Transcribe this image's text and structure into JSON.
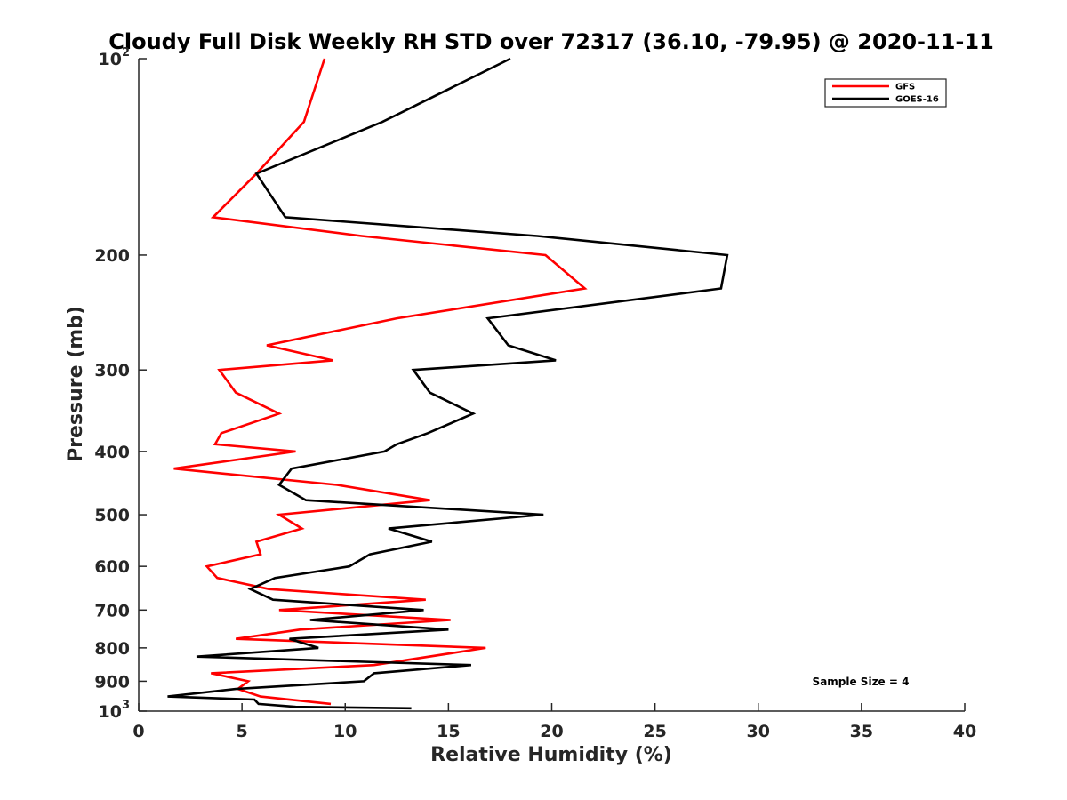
{
  "chart_data": {
    "type": "line",
    "title": "Cloudy Full Disk Weekly RH STD over 72317 (36.10, -79.95) @ 2020-11-11",
    "xlabel": "Relative Humidity (%)",
    "ylabel": "Pressure (mb)",
    "xlim": [
      0,
      40
    ],
    "ylim": [
      100,
      1000
    ],
    "y_scale": "log",
    "y_reversed": true,
    "x_ticks": [
      {
        "value": 0,
        "label": "0"
      },
      {
        "value": 5,
        "label": "5"
      },
      {
        "value": 10,
        "label": "10"
      },
      {
        "value": 15,
        "label": "15"
      },
      {
        "value": 20,
        "label": "20"
      },
      {
        "value": 25,
        "label": "25"
      },
      {
        "value": 30,
        "label": "30"
      },
      {
        "value": 35,
        "label": "35"
      },
      {
        "value": 40,
        "label": "40"
      }
    ],
    "y_ticks": [
      {
        "value": 100,
        "base": "10",
        "exp": "2"
      },
      {
        "value": 200,
        "label": "200"
      },
      {
        "value": 300,
        "label": "300"
      },
      {
        "value": 400,
        "label": "400"
      },
      {
        "value": 500,
        "label": "500"
      },
      {
        "value": 600,
        "label": "600"
      },
      {
        "value": 700,
        "label": "700"
      },
      {
        "value": 800,
        "label": "800"
      },
      {
        "value": 900,
        "label": "900"
      },
      {
        "value": 1000,
        "base": "10",
        "exp": "3"
      }
    ],
    "grid": false,
    "legend_position": "top-right",
    "series": [
      {
        "name": "GFS",
        "color": "#ff0000",
        "points": [
          {
            "x": 9.0,
            "y": 100
          },
          {
            "x": 8.0,
            "y": 125
          },
          {
            "x": 5.7,
            "y": 150
          },
          {
            "x": 3.6,
            "y": 175
          },
          {
            "x": 10.8,
            "y": 187
          },
          {
            "x": 19.7,
            "y": 200
          },
          {
            "x": 21.6,
            "y": 225
          },
          {
            "x": 12.5,
            "y": 250
          },
          {
            "x": 6.2,
            "y": 275
          },
          {
            "x": 9.4,
            "y": 290
          },
          {
            "x": 3.9,
            "y": 300
          },
          {
            "x": 4.7,
            "y": 325
          },
          {
            "x": 6.8,
            "y": 350
          },
          {
            "x": 4.0,
            "y": 375
          },
          {
            "x": 3.7,
            "y": 390
          },
          {
            "x": 7.6,
            "y": 400
          },
          {
            "x": 1.7,
            "y": 425
          },
          {
            "x": 9.6,
            "y": 450
          },
          {
            "x": 14.1,
            "y": 475
          },
          {
            "x": 6.8,
            "y": 500
          },
          {
            "x": 7.9,
            "y": 525
          },
          {
            "x": 5.7,
            "y": 550
          },
          {
            "x": 5.9,
            "y": 575
          },
          {
            "x": 3.3,
            "y": 600
          },
          {
            "x": 3.8,
            "y": 625
          },
          {
            "x": 6.3,
            "y": 650
          },
          {
            "x": 13.9,
            "y": 675
          },
          {
            "x": 6.8,
            "y": 700
          },
          {
            "x": 15.1,
            "y": 725
          },
          {
            "x": 7.8,
            "y": 750
          },
          {
            "x": 4.7,
            "y": 775
          },
          {
            "x": 16.8,
            "y": 800
          },
          {
            "x": 11.4,
            "y": 850
          },
          {
            "x": 3.5,
            "y": 875
          },
          {
            "x": 5.3,
            "y": 900
          },
          {
            "x": 4.8,
            "y": 925
          },
          {
            "x": 5.9,
            "y": 950
          },
          {
            "x": 9.3,
            "y": 975
          }
        ]
      },
      {
        "name": "GOES-16",
        "color": "#000000",
        "points": [
          {
            "x": 18.0,
            "y": 100
          },
          {
            "x": 11.8,
            "y": 125
          },
          {
            "x": 5.7,
            "y": 150
          },
          {
            "x": 7.1,
            "y": 175
          },
          {
            "x": 19.3,
            "y": 187
          },
          {
            "x": 28.5,
            "y": 200
          },
          {
            "x": 28.2,
            "y": 225
          },
          {
            "x": 16.9,
            "y": 250
          },
          {
            "x": 17.9,
            "y": 275
          },
          {
            "x": 20.2,
            "y": 290
          },
          {
            "x": 13.3,
            "y": 300
          },
          {
            "x": 14.1,
            "y": 325
          },
          {
            "x": 16.2,
            "y": 350
          },
          {
            "x": 14.0,
            "y": 375
          },
          {
            "x": 12.5,
            "y": 390
          },
          {
            "x": 11.9,
            "y": 400
          },
          {
            "x": 7.4,
            "y": 425
          },
          {
            "x": 6.8,
            "y": 450
          },
          {
            "x": 8.1,
            "y": 475
          },
          {
            "x": 19.6,
            "y": 500
          },
          {
            "x": 12.1,
            "y": 525
          },
          {
            "x": 14.2,
            "y": 550
          },
          {
            "x": 11.2,
            "y": 575
          },
          {
            "x": 10.2,
            "y": 600
          },
          {
            "x": 6.6,
            "y": 625
          },
          {
            "x": 5.4,
            "y": 650
          },
          {
            "x": 6.5,
            "y": 675
          },
          {
            "x": 13.8,
            "y": 700
          },
          {
            "x": 8.3,
            "y": 725
          },
          {
            "x": 15.0,
            "y": 750
          },
          {
            "x": 7.3,
            "y": 775
          },
          {
            "x": 8.7,
            "y": 800
          },
          {
            "x": 2.8,
            "y": 825
          },
          {
            "x": 16.1,
            "y": 850
          },
          {
            "x": 11.4,
            "y": 875
          },
          {
            "x": 10.9,
            "y": 900
          },
          {
            "x": 4.7,
            "y": 925
          },
          {
            "x": 1.4,
            "y": 950
          },
          {
            "x": 5.6,
            "y": 960
          },
          {
            "x": 5.8,
            "y": 975
          },
          {
            "x": 7.6,
            "y": 985
          },
          {
            "x": 13.2,
            "y": 990
          }
        ]
      }
    ],
    "annotations": [
      {
        "text": "Sample Size = 4",
        "position": "bottom-right"
      }
    ]
  }
}
